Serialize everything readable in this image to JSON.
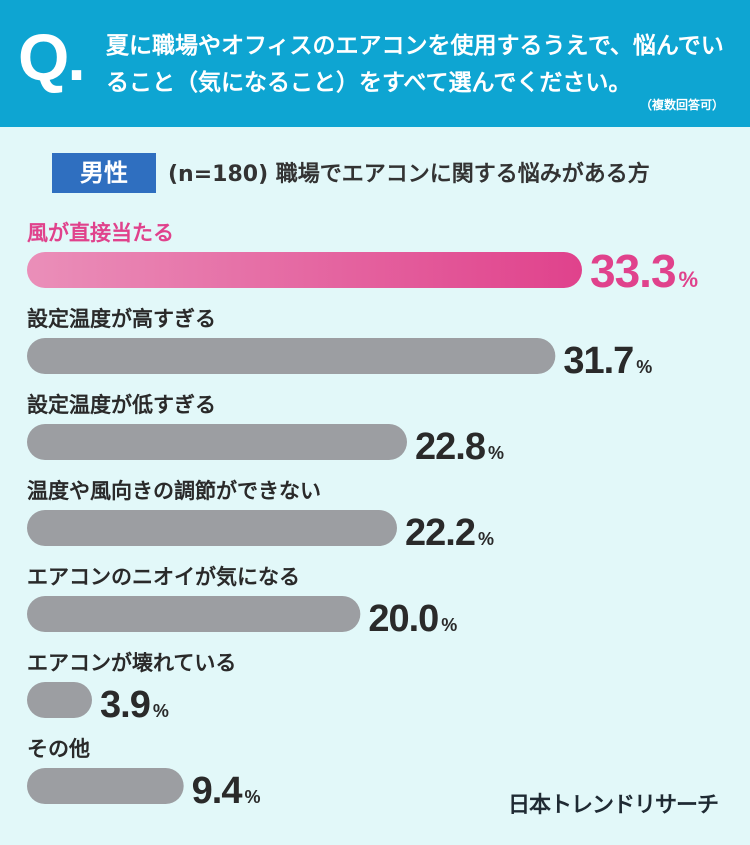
{
  "question": {
    "mark": "Q.",
    "text": "夏に職場やオフィスのエアコンを使用するうえで、悩んでいること（気になること）をすべて選んでください。",
    "note": "（複数回答可）"
  },
  "segment": {
    "badge": "男性",
    "subtitle": "(n=180) 職場でエアコンに関する悩みがある方"
  },
  "brand": "日本トレンドリサーチ",
  "colors": {
    "highlight": "#e0428c",
    "bar": "#9c9ea2",
    "header": "#0ea5d2",
    "badge": "#2f6fc0"
  },
  "chart_data": {
    "type": "bar",
    "orientation": "horizontal",
    "unit": "%",
    "categories": [
      "風が直接当たる",
      "設定温度が高すぎる",
      "設定温度が低すぎる",
      "温度や風向きの調節ができない",
      "エアコンのニオイが気になる",
      "エアコンが壊れている",
      "その他"
    ],
    "values": [
      33.3,
      31.7,
      22.8,
      22.2,
      20.0,
      3.9,
      9.4
    ],
    "value_labels": [
      "33.3",
      "31.7",
      "22.8",
      "22.2",
      "20.0",
      "3.9",
      "9.4"
    ],
    "highlight_index": 0
  }
}
